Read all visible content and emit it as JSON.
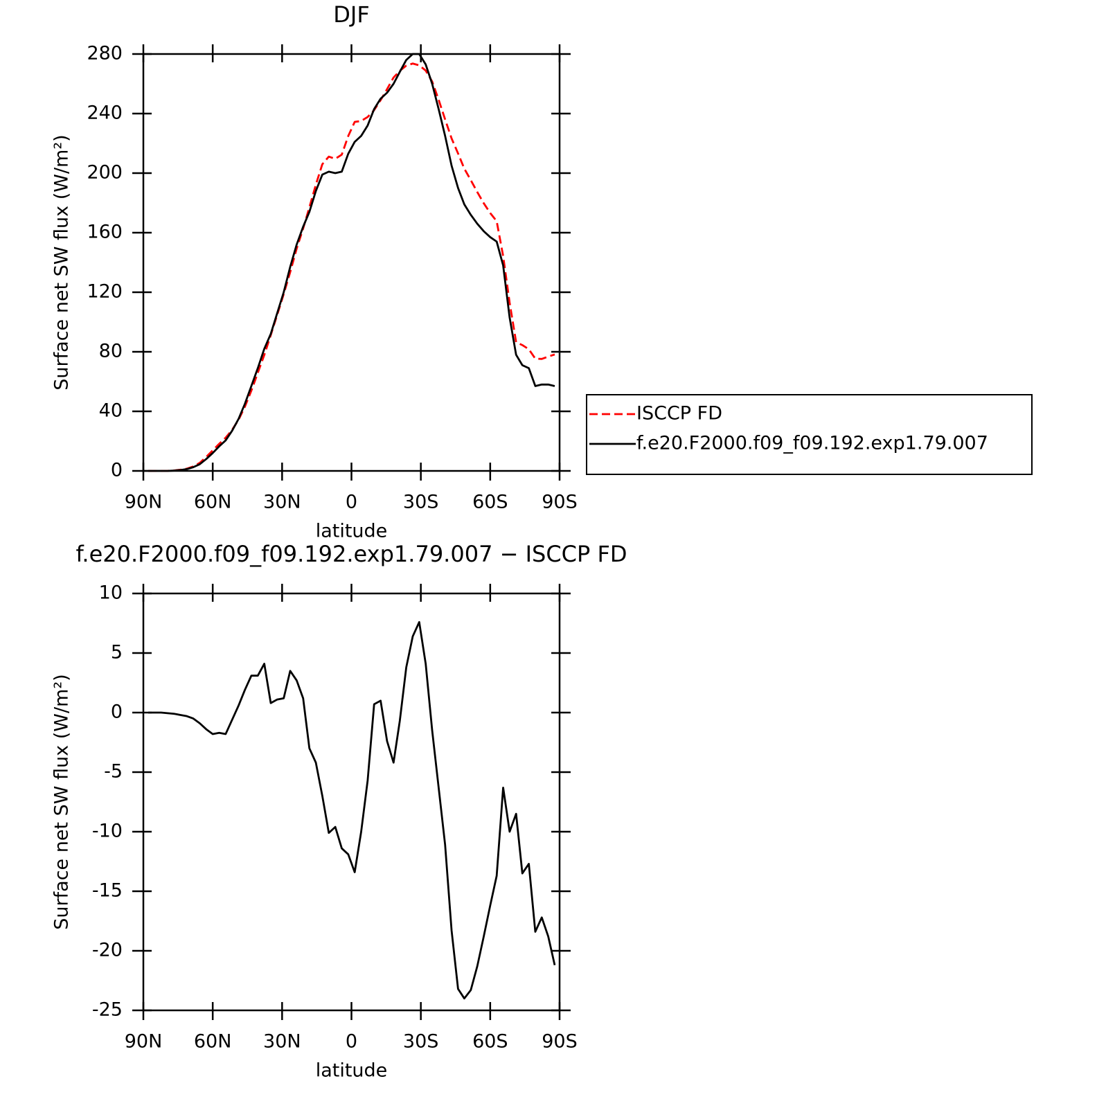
{
  "chart_data": [
    {
      "type": "line",
      "title": "DJF",
      "x_label": "latitude",
      "y_label": "Surface net SW flux (W/m²)",
      "x": [
        87.9,
        85.1,
        82.3,
        79.5,
        76.7,
        73.9,
        71.2,
        68.4,
        65.6,
        62.8,
        60.0,
        57.2,
        54.4,
        51.6,
        48.8,
        46.1,
        43.3,
        40.5,
        37.7,
        34.9,
        32.1,
        29.3,
        26.5,
        23.7,
        20.9,
        18.2,
        15.4,
        12.6,
        9.8,
        7.0,
        4.2,
        1.4,
        -1.4,
        -4.2,
        -7.0,
        -9.8,
        -12.6,
        -15.4,
        -18.2,
        -20.9,
        -23.7,
        -26.5,
        -29.3,
        -32.1,
        -34.9,
        -37.7,
        -40.5,
        -43.3,
        -46.1,
        -48.8,
        -51.6,
        -54.4,
        -57.2,
        -60.0,
        -62.8,
        -65.6,
        -68.4,
        -71.2,
        -73.9,
        -76.7,
        -79.5,
        -82.3,
        -85.1,
        -87.9
      ],
      "xlim": [
        90,
        -90
      ],
      "xticks": [
        {
          "value": 90,
          "label": "90N"
        },
        {
          "value": 60,
          "label": "60N"
        },
        {
          "value": 30,
          "label": "30N"
        },
        0,
        {
          "value": -30,
          "label": "30S"
        },
        {
          "value": -60,
          "label": "60S"
        },
        {
          "value": -90,
          "label": "90S"
        }
      ],
      "ylim": [
        0,
        280
      ],
      "yticks": [
        0,
        40,
        80,
        120,
        160,
        200,
        240,
        280
      ],
      "legend": "right",
      "series": [
        {
          "name": "ISCCP FD",
          "color": "#ff0000",
          "dash": "dashed",
          "values": [
            0,
            0,
            0,
            0.05,
            0.3,
            0.8,
            1.5,
            3.0,
            5.4,
            9.4,
            13.8,
            18.2,
            22.3,
            27.6,
            34.4,
            43.1,
            53.9,
            65.9,
            77.9,
            91.2,
            104.9,
            118.8,
            133.5,
            149.3,
            162.8,
            177,
            192.2,
            206,
            211.1,
            209.6,
            212.4,
            224.9,
            234.4,
            235,
            237.7,
            242.3,
            249,
            256.4,
            264.2,
            268.7,
            272.2,
            273.6,
            272.4,
            268.9,
            261.5,
            249.3,
            236.1,
            223.3,
            213.2,
            203,
            195.3,
            187.3,
            179.8,
            173.2,
            167.7,
            144.3,
            113,
            86.5,
            84.5,
            81.7,
            75.4,
            75.2,
            76.8,
            78.2
          ]
        },
        {
          "name": "f.e20.F2000.f09_f09.192.exp1.79.007",
          "color": "#000000",
          "dash": "solid",
          "values": [
            0,
            0,
            0,
            0,
            0.2,
            0.6,
            1.2,
            2.5,
            4.5,
            8,
            12,
            16.5,
            20.5,
            27,
            35,
            45,
            57,
            69,
            82,
            92,
            106,
            120,
            137,
            152,
            164,
            174,
            188,
            199,
            201,
            200,
            201,
            213,
            221,
            225,
            232,
            243,
            250,
            254,
            260,
            268,
            276,
            280,
            280,
            273,
            260,
            243,
            225,
            205,
            190,
            179,
            172,
            166,
            161,
            157,
            154,
            138,
            103,
            78,
            71,
            69,
            57,
            58,
            58,
            57
          ]
        }
      ]
    },
    {
      "type": "line",
      "title": "f.e20.F2000.f09_f09.192.exp1.79.007 − ISCCP FD",
      "x_label": "latitude",
      "y_label": "Surface net SW flux (W/m²)",
      "x": [
        87.9,
        85.1,
        82.3,
        79.5,
        76.7,
        73.9,
        71.2,
        68.4,
        65.6,
        62.8,
        60.0,
        57.2,
        54.4,
        51.6,
        48.8,
        46.1,
        43.3,
        40.5,
        37.7,
        34.9,
        32.1,
        29.3,
        26.5,
        23.7,
        20.9,
        18.2,
        15.4,
        12.6,
        9.8,
        7.0,
        4.2,
        1.4,
        -1.4,
        -4.2,
        -7.0,
        -9.8,
        -12.6,
        -15.4,
        -18.2,
        -20.9,
        -23.7,
        -26.5,
        -29.3,
        -32.1,
        -34.9,
        -37.7,
        -40.5,
        -43.3,
        -46.1,
        -48.8,
        -51.6,
        -54.4,
        -57.2,
        -60.0,
        -62.8,
        -65.6,
        -68.4,
        -71.2,
        -73.9,
        -76.7,
        -79.5,
        -82.3,
        -85.1,
        -87.9
      ],
      "xlim": [
        90,
        -90
      ],
      "xticks": [
        {
          "value": 90,
          "label": "90N"
        },
        {
          "value": 60,
          "label": "60N"
        },
        {
          "value": 30,
          "label": "30N"
        },
        0,
        {
          "value": -30,
          "label": "30S"
        },
        {
          "value": -60,
          "label": "60S"
        },
        {
          "value": -90,
          "label": "90S"
        }
      ],
      "ylim": [
        -25,
        10
      ],
      "yticks": [
        -25,
        -20,
        -15,
        -10,
        -5,
        0,
        5,
        10
      ],
      "series": [
        {
          "color": "#000000",
          "dash": "solid",
          "values": [
            0,
            0,
            0,
            -0.05,
            -0.1,
            -0.2,
            -0.3,
            -0.5,
            -0.9,
            -1.4,
            -1.8,
            -1.7,
            -1.8,
            -0.6,
            0.6,
            1.9,
            3.1,
            3.1,
            4.1,
            0.8,
            1.1,
            1.2,
            3.5,
            2.7,
            1.2,
            -3.0,
            -4.2,
            -7.0,
            -10.1,
            -9.6,
            -11.4,
            -11.9,
            -13.4,
            -10.0,
            -5.7,
            0.7,
            1.0,
            -2.4,
            -4.2,
            -0.7,
            3.8,
            6.4,
            7.6,
            4.1,
            -1.5,
            -6.3,
            -11.1,
            -18.3,
            -23.2,
            -24.0,
            -23.3,
            -21.3,
            -18.8,
            -16.2,
            -13.7,
            -6.3,
            -10.0,
            -8.5,
            -13.5,
            -12.7,
            -18.4,
            -17.2,
            -18.8,
            -21.2
          ]
        }
      ]
    }
  ]
}
